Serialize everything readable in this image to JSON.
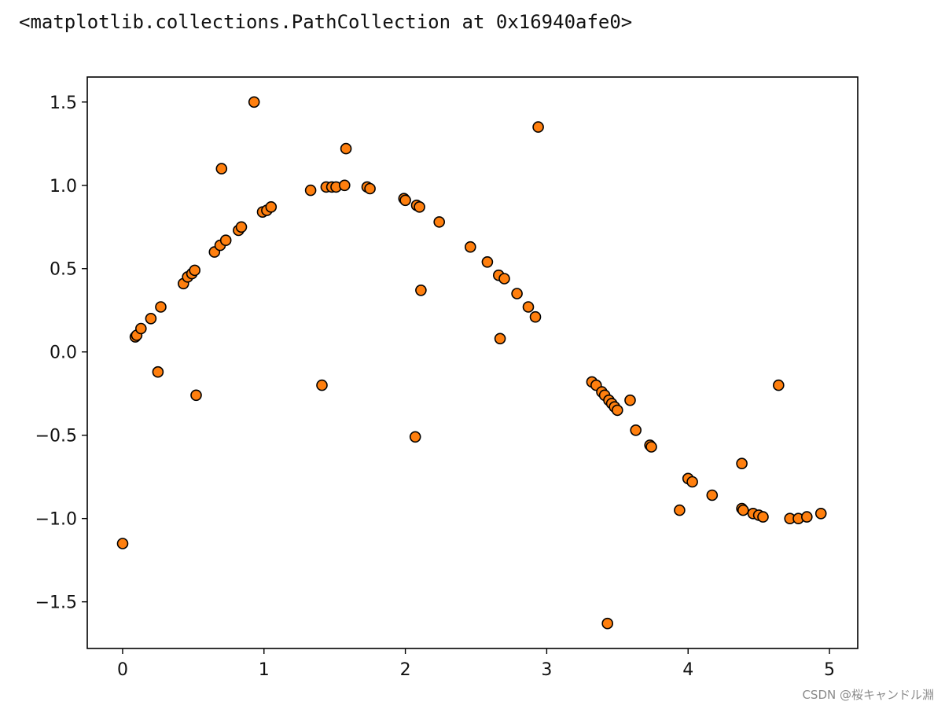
{
  "output_line": "<matplotlib.collections.PathCollection at 0x16940afe0>",
  "watermark": "CSDN @桜キャンドル淵",
  "colors": {
    "marker_fill": "#ff7f0e",
    "marker_edge": "#000000",
    "axes": "#000000"
  },
  "chart_data": {
    "type": "scatter",
    "title": "",
    "xlabel": "",
    "ylabel": "",
    "xlim": [
      -0.25,
      5.2
    ],
    "ylim": [
      -1.78,
      1.65
    ],
    "grid": false,
    "xticks": [
      0,
      1,
      2,
      3,
      4,
      5
    ],
    "xtick_labels": [
      "0",
      "1",
      "2",
      "3",
      "4",
      "5"
    ],
    "yticks": [
      1.5,
      1.0,
      0.5,
      0.0,
      -0.5,
      -1.0,
      -1.5
    ],
    "ytick_labels": [
      "1.5",
      "1.0",
      "0.5",
      "0.0",
      "−0.5",
      "−1.0",
      "−1.5"
    ],
    "points": [
      [
        0.0,
        -1.15
      ],
      [
        0.09,
        0.09
      ],
      [
        0.1,
        0.1
      ],
      [
        0.13,
        0.14
      ],
      [
        0.2,
        0.2
      ],
      [
        0.25,
        -0.12
      ],
      [
        0.27,
        0.27
      ],
      [
        0.43,
        0.41
      ],
      [
        0.46,
        0.45
      ],
      [
        0.49,
        0.47
      ],
      [
        0.51,
        0.49
      ],
      [
        0.52,
        -0.26
      ],
      [
        0.65,
        0.6
      ],
      [
        0.69,
        0.64
      ],
      [
        0.7,
        1.1
      ],
      [
        0.73,
        0.67
      ],
      [
        0.82,
        0.73
      ],
      [
        0.84,
        0.75
      ],
      [
        0.93,
        1.5
      ],
      [
        0.99,
        0.84
      ],
      [
        1.02,
        0.85
      ],
      [
        1.05,
        0.87
      ],
      [
        1.33,
        0.97
      ],
      [
        1.41,
        -0.2
      ],
      [
        1.44,
        0.99
      ],
      [
        1.48,
        0.99
      ],
      [
        1.51,
        0.99
      ],
      [
        1.57,
        1.0
      ],
      [
        1.58,
        1.22
      ],
      [
        1.73,
        0.99
      ],
      [
        1.75,
        0.98
      ],
      [
        1.99,
        0.92
      ],
      [
        2.0,
        0.91
      ],
      [
        2.07,
        -0.51
      ],
      [
        2.08,
        0.88
      ],
      [
        2.1,
        0.87
      ],
      [
        2.11,
        0.37
      ],
      [
        2.24,
        0.78
      ],
      [
        2.46,
        0.63
      ],
      [
        2.58,
        0.54
      ],
      [
        2.66,
        0.46
      ],
      [
        2.67,
        0.08
      ],
      [
        2.7,
        0.44
      ],
      [
        2.79,
        0.35
      ],
      [
        2.87,
        0.27
      ],
      [
        2.92,
        0.21
      ],
      [
        2.94,
        1.35
      ],
      [
        3.32,
        -0.18
      ],
      [
        3.35,
        -0.2
      ],
      [
        3.39,
        -0.24
      ],
      [
        3.41,
        -0.26
      ],
      [
        3.43,
        -1.63
      ],
      [
        3.44,
        -0.29
      ],
      [
        3.46,
        -0.31
      ],
      [
        3.48,
        -0.33
      ],
      [
        3.5,
        -0.35
      ],
      [
        3.59,
        -0.29
      ],
      [
        3.63,
        -0.47
      ],
      [
        3.73,
        -0.56
      ],
      [
        3.74,
        -0.57
      ],
      [
        3.94,
        -0.95
      ],
      [
        4.0,
        -0.76
      ],
      [
        4.03,
        -0.78
      ],
      [
        4.17,
        -0.86
      ],
      [
        4.38,
        -0.67
      ],
      [
        4.38,
        -0.94
      ],
      [
        4.39,
        -0.95
      ],
      [
        4.46,
        -0.97
      ],
      [
        4.5,
        -0.98
      ],
      [
        4.53,
        -0.99
      ],
      [
        4.64,
        -0.2
      ],
      [
        4.72,
        -1.0
      ],
      [
        4.78,
        -1.0
      ],
      [
        4.84,
        -0.99
      ],
      [
        4.94,
        -0.97
      ]
    ]
  }
}
